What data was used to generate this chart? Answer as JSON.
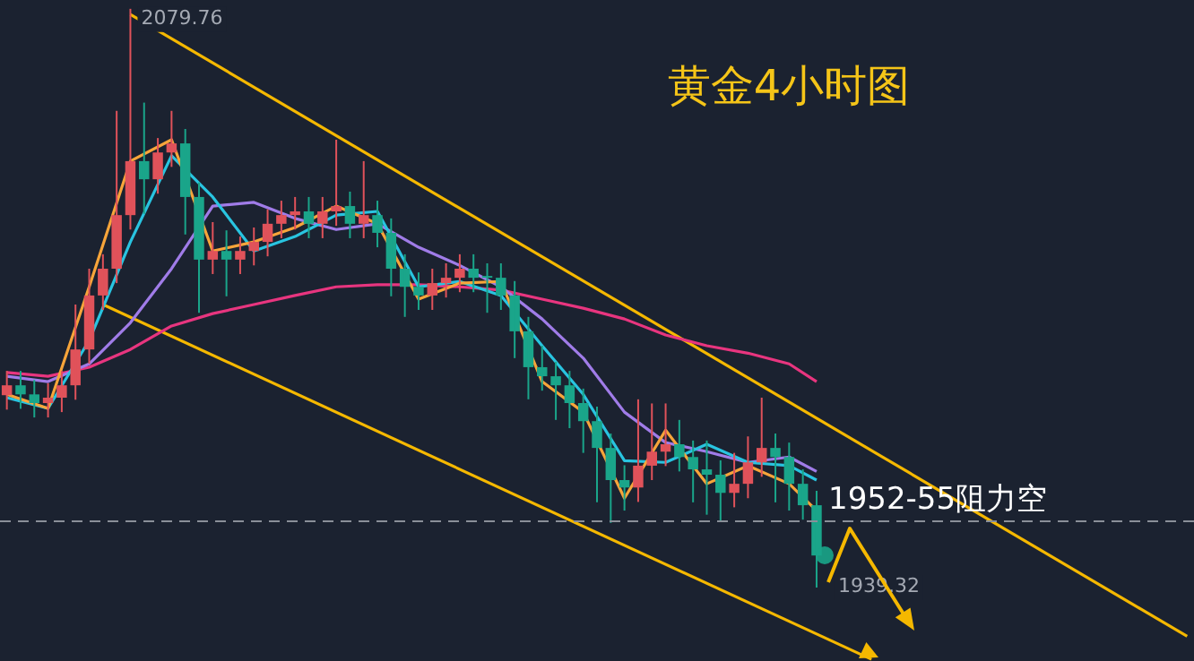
{
  "chart_data": {
    "type": "candlestick",
    "title": "黄金4小时图",
    "categories": [
      null,
      null,
      null,
      null,
      null,
      null,
      null,
      null,
      null,
      null,
      null,
      null,
      null,
      null,
      null,
      null,
      null,
      null,
      null,
      null,
      null,
      null,
      null,
      null,
      null,
      null,
      null,
      null,
      null,
      null,
      null,
      null,
      null,
      null,
      null,
      null,
      null,
      null,
      null,
      null,
      null,
      null,
      null,
      null,
      null,
      null,
      null,
      null,
      null,
      null,
      null,
      null,
      null,
      null,
      null,
      null,
      null,
      null,
      null,
      null,
      null,
      null,
      null,
      null,
      null,
      null,
      null,
      null,
      null,
      null,
      null,
      null,
      null,
      null,
      null,
      null,
      null,
      null,
      null,
      null,
      null,
      null,
      null,
      null,
      null,
      null,
      null
    ],
    "ylim": [
      1921.5,
      2081.9
    ],
    "ohlc": [
      [
        1986.0,
        1991.9,
        1982.5,
        1988.4
      ],
      [
        1988.4,
        1991.9,
        1982.7,
        1986.2
      ],
      [
        1986.2,
        1989.7,
        1980.6,
        1984.1
      ],
      [
        1984.1,
        1988.9,
        1980.6,
        1985.4
      ],
      [
        1985.4,
        1991.9,
        1981.9,
        1988.4
      ],
      [
        1988.4,
        2008.0,
        1984.9,
        1997.1
      ],
      [
        1997.1,
        2016.7,
        1993.6,
        2010.2
      ],
      [
        2010.2,
        2020.2,
        2006.7,
        2016.7
      ],
      [
        2016.7,
        2055.0,
        2013.2,
        2029.7
      ],
      [
        2029.7,
        2079.76,
        2026.2,
        2042.8
      ],
      [
        2042.8,
        2057.0,
        2030.0,
        2038.4
      ],
      [
        2038.4,
        2048.4,
        2034.9,
        2044.9
      ],
      [
        2044.9,
        2055.0,
        2041.4,
        2047.1
      ],
      [
        2047.1,
        2050.6,
        2025.0,
        2034.1
      ],
      [
        2034.1,
        2037.6,
        2006.0,
        2018.9
      ],
      [
        2018.9,
        2028.0,
        2015.4,
        2021.0
      ],
      [
        2021.0,
        2026.0,
        2010.0,
        2018.9
      ],
      [
        2018.9,
        2024.5,
        2015.4,
        2021.0
      ],
      [
        2021.0,
        2026.7,
        2017.5,
        2023.2
      ],
      [
        2023.2,
        2031.1,
        2019.7,
        2027.6
      ],
      [
        2027.6,
        2033.2,
        2024.1,
        2029.7
      ],
      [
        2029.7,
        2034.1,
        2026.2,
        2030.6
      ],
      [
        2030.6,
        2034.1,
        2024.1,
        2027.6
      ],
      [
        2027.6,
        2034.1,
        2024.1,
        2030.6
      ],
      [
        2030.6,
        2048.0,
        2027.1,
        2031.9
      ],
      [
        2031.9,
        2035.4,
        2024.1,
        2027.6
      ],
      [
        2027.6,
        2042.8,
        2024.1,
        2029.7
      ],
      [
        2029.7,
        2033.2,
        2021.9,
        2025.4
      ],
      [
        2025.4,
        2028.9,
        2010.0,
        2016.7
      ],
      [
        2016.7,
        2020.2,
        2005.0,
        2012.3
      ],
      [
        2012.3,
        2015.8,
        2006.7,
        2010.2
      ],
      [
        2010.2,
        2016.7,
        2006.7,
        2013.2
      ],
      [
        2013.2,
        2018.0,
        2009.7,
        2014.5
      ],
      [
        2014.5,
        2020.2,
        2011.0,
        2016.7
      ],
      [
        2016.7,
        2020.2,
        2011.0,
        2014.5
      ],
      [
        2014.5,
        2018.0,
        2006.0,
        2014.5
      ],
      [
        2014.5,
        2018.0,
        2006.7,
        2010.2
      ],
      [
        2010.2,
        2013.7,
        1995.0,
        2001.5
      ],
      [
        2001.5,
        2005.0,
        1985.0,
        1992.8
      ],
      [
        1992.8,
        1998.0,
        1987.1,
        1990.6
      ],
      [
        1990.6,
        1994.1,
        1980.0,
        1988.4
      ],
      [
        1988.4,
        1991.9,
        1978.0,
        1984.1
      ],
      [
        1984.1,
        1987.6,
        1972.0,
        1979.7
      ],
      [
        1979.7,
        1983.2,
        1960.0,
        1973.2
      ],
      [
        1973.2,
        1976.7,
        1955.0,
        1965.4
      ],
      [
        1965.4,
        1969.0,
        1958.0,
        1963.6
      ],
      [
        1963.6,
        1985.0,
        1960.1,
        1968.9
      ],
      [
        1968.9,
        1984.0,
        1965.4,
        1972.3
      ],
      [
        1972.3,
        1984.0,
        1968.8,
        1974.1
      ],
      [
        1974.1,
        1980.0,
        1967.5,
        1971.0
      ],
      [
        1971.0,
        1975.0,
        1960.0,
        1968.0
      ],
      [
        1968.0,
        1975.0,
        1957.0,
        1966.7
      ],
      [
        1966.7,
        1970.2,
        1955.5,
        1962.3
      ],
      [
        1962.3,
        1972.0,
        1958.8,
        1964.5
      ],
      [
        1964.5,
        1976.0,
        1961.0,
        1969.7
      ],
      [
        1969.7,
        1985.4,
        1966.2,
        1973.2
      ],
      [
        1973.2,
        1976.7,
        1960.0,
        1971.0
      ],
      [
        1971.0,
        1974.5,
        1958.0,
        1964.5
      ],
      [
        1964.5,
        1968.0,
        1955.8,
        1959.3
      ],
      [
        1959.3,
        1962.8,
        1939.32,
        1947.1
      ],
      null,
      null,
      null,
      null,
      null,
      null,
      null,
      null,
      null,
      null,
      null,
      null,
      null,
      null,
      null,
      null,
      null,
      null,
      null,
      null,
      null,
      null,
      null,
      null,
      null,
      null,
      null
    ],
    "colors": [
      "#e0525a",
      "#1aa58a",
      "#1aa58a",
      "#e0525a",
      "#e0525a",
      "#e0525a",
      "#e0525a",
      "#e0525a",
      "#e0525a",
      "#e0525a",
      "#1aa58a",
      "#e0525a",
      "#e0525a",
      "#1aa58a",
      "#1aa58a",
      "#e0525a",
      "#1aa58a",
      "#e0525a",
      "#e0525a",
      "#e0525a",
      "#e0525a",
      "#e0525a",
      "#1aa58a",
      "#e0525a",
      "#e0525a",
      "#1aa58a",
      "#e0525a",
      "#1aa58a",
      "#1aa58a",
      "#1aa58a",
      "#1aa58a",
      "#e0525a",
      "#e0525a",
      "#e0525a",
      "#1aa58a",
      "#1aa58a",
      "#1aa58a",
      "#1aa58a",
      "#1aa58a",
      "#1aa58a",
      "#1aa58a",
      "#1aa58a",
      "#1aa58a",
      "#1aa58a",
      "#1aa58a",
      "#1aa58a",
      "#e0525a",
      "#e0525a",
      "#e0525a",
      "#1aa58a",
      "#1aa58a",
      "#1aa58a",
      "#1aa58a",
      "#e0525a",
      "#e0525a",
      "#e0525a",
      "#1aa58a",
      "#1aa58a",
      "#1aa58a",
      "#1aa58a",
      null,
      null,
      null,
      null,
      null,
      null,
      null,
      null,
      null,
      null,
      null,
      null,
      null,
      null,
      null,
      null,
      null,
      null,
      null,
      null,
      null,
      null,
      null,
      null,
      null,
      null,
      null
    ],
    "series": [
      {
        "type": "line",
        "color": "#f7a53a",
        "values": [
          1986.2,
          null,
          null,
          1982.8,
          null,
          null,
          2012.3,
          null,
          null,
          2042.8,
          null,
          null,
          2048.0,
          null,
          null,
          2021.0,
          null,
          null,
          2023.2,
          null,
          null,
          2026.7,
          null,
          null,
          2031.9,
          null,
          null,
          2027.6,
          null,
          null,
          2009.3,
          null,
          null,
          2013.2,
          null,
          null,
          2013.6,
          null,
          null,
          1989.3,
          null,
          null,
          1981.9,
          null,
          null,
          1961.0,
          null,
          null,
          1977.5,
          null,
          null,
          1964.5,
          null,
          null,
          1968.9,
          null,
          null,
          1964.5,
          null,
          1958.0,
          null,
          null,
          null,
          null,
          null,
          null,
          null,
          null,
          null,
          null,
          null,
          null,
          null,
          null,
          null,
          null,
          null,
          null,
          null,
          null,
          null,
          null,
          null,
          null,
          null,
          null,
          null
        ]
      },
      {
        "type": "line",
        "color": "#29c4e0",
        "values": [
          1985.4,
          null,
          null,
          1982.8,
          null,
          null,
          1999.3,
          null,
          null,
          2023.2,
          null,
          null,
          2044.1,
          null,
          null,
          2034.1,
          null,
          null,
          2021.0,
          null,
          null,
          2024.5,
          null,
          null,
          2029.7,
          null,
          null,
          2030.6,
          null,
          null,
          2012.3,
          null,
          null,
          2013.6,
          null,
          null,
          2010.2,
          null,
          null,
          1998.0,
          null,
          null,
          1986.2,
          null,
          null,
          1970.1,
          null,
          null,
          1969.7,
          null,
          null,
          1974.1,
          null,
          null,
          1969.7,
          null,
          null,
          1968.9,
          null,
          1965.4,
          null,
          null,
          null,
          null,
          null,
          null,
          null,
          null,
          null,
          null,
          null,
          null,
          null,
          null,
          null,
          null,
          null,
          null,
          null,
          null,
          null,
          null,
          null,
          null,
          null,
          null,
          null
        ]
      },
      {
        "type": "line",
        "color": "#a07ce8",
        "values": [
          1990.6,
          null,
          null,
          1989.3,
          null,
          null,
          1993.6,
          null,
          null,
          2003.6,
          null,
          null,
          2016.7,
          null,
          null,
          2031.9,
          null,
          null,
          2032.8,
          null,
          null,
          2028.9,
          null,
          null,
          2026.2,
          null,
          null,
          2027.6,
          null,
          null,
          2021.9,
          null,
          null,
          2017.5,
          null,
          null,
          2012.3,
          null,
          null,
          2004.5,
          null,
          null,
          1995.0,
          null,
          null,
          1981.9,
          null,
          null,
          1974.5,
          null,
          null,
          1972.3,
          null,
          null,
          1969.7,
          null,
          null,
          1971.0,
          null,
          1967.5,
          null,
          null,
          null,
          null,
          null,
          null,
          null,
          null,
          null,
          null,
          null,
          null,
          null,
          null,
          null,
          null,
          null,
          null,
          null,
          null,
          null,
          null,
          null,
          null,
          null,
          null,
          null
        ]
      },
      {
        "type": "line",
        "color": "#e8357f",
        "values": [
          1991.5,
          null,
          null,
          1990.6,
          null,
          null,
          1992.8,
          null,
          null,
          1997.1,
          null,
          null,
          2002.8,
          null,
          null,
          2005.8,
          null,
          null,
          2008.0,
          null,
          null,
          2010.2,
          null,
          null,
          2012.3,
          null,
          null,
          2012.8,
          null,
          null,
          2012.8,
          null,
          null,
          2012.3,
          null,
          null,
          2011.5,
          null,
          null,
          2009.3,
          null,
          null,
          2007.1,
          null,
          null,
          2004.5,
          null,
          null,
          2000.6,
          null,
          null,
          1998.0,
          null,
          null,
          1996.2,
          null,
          null,
          1993.6,
          null,
          1989.3,
          null,
          null,
          null,
          null,
          null,
          null,
          null,
          null,
          null,
          null,
          null,
          null,
          null,
          null,
          null,
          null,
          null,
          null,
          null,
          null,
          null,
          null,
          null,
          null,
          null,
          null,
          null
        ]
      },
      {
        "type": "line",
        "color": "#f5b800",
        "values": [
          null,
          null,
          null,
          null,
          null,
          null,
          null,
          null,
          null,
          2078.4,
          null,
          null,
          null,
          null,
          null,
          null,
          null,
          null,
          null,
          null,
          null,
          null,
          null,
          null,
          null,
          null,
          null,
          null,
          null,
          null,
          null,
          null,
          null,
          null,
          null,
          null,
          null,
          null,
          null,
          null,
          null,
          null,
          null,
          null,
          null,
          null,
          null,
          null,
          null,
          null,
          null,
          null,
          null,
          null,
          null,
          null,
          null,
          null,
          null,
          null,
          null,
          null,
          null,
          null,
          null,
          null,
          null,
          null,
          null,
          null,
          null,
          null,
          null,
          null,
          null,
          null,
          null,
          null,
          null,
          null,
          null,
          null,
          null,
          null,
          null,
          null,
          1927.5
        ]
      },
      {
        "type": "line",
        "color": "#f5b800",
        "values": [
          null,
          null,
          null,
          null,
          null,
          null,
          null,
          2008.0,
          null,
          null,
          null,
          null,
          null,
          null,
          null,
          null,
          null,
          null,
          null,
          null,
          null,
          null,
          null,
          null,
          null,
          null,
          null,
          null,
          null,
          null,
          null,
          null,
          null,
          null,
          null,
          null,
          null,
          null,
          null,
          null,
          null,
          null,
          null,
          null,
          null,
          null,
          null,
          null,
          null,
          null,
          null,
          null,
          null,
          null,
          null,
          null,
          null,
          null,
          null,
          null,
          null,
          null,
          null,
          1921.9,
          null,
          null,
          null,
          null,
          null,
          null,
          null,
          null,
          null,
          null,
          null,
          null,
          null,
          null,
          null,
          null,
          null,
          null,
          null,
          null,
          null,
          null,
          null
        ]
      }
    ],
    "ref_lines": [
      {
        "axis": "y",
        "value": 1955.4,
        "label": "1952-55阻力空",
        "color": "#8a8f99",
        "line_style": "dashed"
      }
    ],
    "annotations": [
      "2079.76",
      "1939.32"
    ],
    "legend": false
  }
}
